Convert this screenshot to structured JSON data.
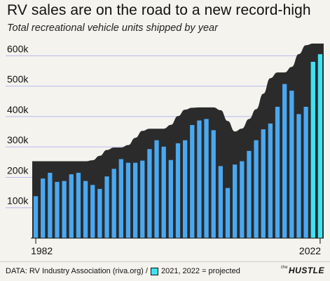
{
  "header": {
    "title": "RV sales are on the road to a new record-high",
    "subtitle": "Total recreational vehicle units shipped by year"
  },
  "footer": {
    "source": "DATA: RV Industry Association (riva.org) /",
    "projected_note": "2021, 2022 = projected",
    "logo_prefix": "the",
    "logo_text": "HUSTLE"
  },
  "colors": {
    "background": "#f4f3ee",
    "area": "#2b2b2b",
    "bar_actual": "#4aa8f0",
    "bar_projected": "#3ee3f2",
    "gridline": "#b8b8f0",
    "axis_text": "#111111"
  },
  "chart_data": {
    "type": "bar",
    "title": "RV sales are on the road to a new record-high",
    "subtitle": "Total recreational vehicle units shipped by year",
    "x": [
      1982,
      1983,
      1984,
      1985,
      1986,
      1987,
      1988,
      1989,
      1990,
      1991,
      1992,
      1993,
      1994,
      1995,
      1996,
      1997,
      1998,
      1999,
      2000,
      2001,
      2002,
      2003,
      2004,
      2005,
      2006,
      2007,
      2008,
      2009,
      2010,
      2011,
      2012,
      2013,
      2014,
      2015,
      2016,
      2017,
      2018,
      2019,
      2020,
      2021,
      2022
    ],
    "x_tick_labels": [
      "1982",
      "2022"
    ],
    "series": [
      {
        "values": [
          138000,
          196000,
          215000,
          185000,
          188000,
          210000,
          215000,
          188000,
          175000,
          162000,
          203000,
          228000,
          260000,
          248000,
          248000,
          255000,
          293000,
          322000,
          301000,
          257000,
          312000,
          322000,
          372000,
          387000,
          392000,
          355000,
          237000,
          165000,
          242000,
          253000,
          287000,
          322000,
          358000,
          377000,
          432000,
          507000,
          485000,
          408000,
          432000,
          580000,
          605000
        ],
        "projected": [
          false,
          false,
          false,
          false,
          false,
          false,
          false,
          false,
          false,
          false,
          false,
          false,
          false,
          false,
          false,
          false,
          false,
          false,
          false,
          false,
          false,
          false,
          false,
          false,
          false,
          false,
          false,
          false,
          false,
          false,
          false,
          false,
          false,
          false,
          false,
          false,
          false,
          false,
          false,
          true,
          true
        ]
      }
    ],
    "ylim": [
      0,
      640000
    ],
    "y_ticks": [
      100000,
      200000,
      300000,
      400000,
      500000,
      600000
    ],
    "y_tick_labels": [
      "100k",
      "200k",
      "300k",
      "400k",
      "500k",
      "600k"
    ],
    "grid": true,
    "legend": [
      {
        "label": "2021, 2022 = projected",
        "color": "#3ee3f2",
        "placement": "footer"
      }
    ]
  }
}
